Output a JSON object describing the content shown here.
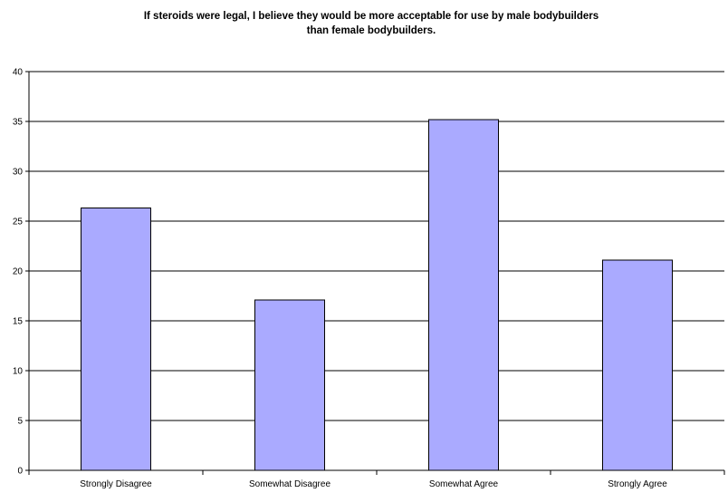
{
  "chart_data": {
    "type": "bar",
    "title_line1": "If steroids were legal, I believe they would be more acceptable for use by male bodybuilders",
    "title_line2": "than female bodybuilders.",
    "categories": [
      "Strongly Disagree",
      "Somewhat Disagree",
      "Somewhat Agree",
      "Strongly Agree"
    ],
    "values": [
      26.3,
      17.1,
      35.2,
      21.1
    ],
    "xlabel": "",
    "ylabel": "",
    "ylim": [
      0,
      40
    ],
    "yticks": [
      0,
      5,
      10,
      15,
      20,
      25,
      30,
      35,
      40
    ],
    "grid": true,
    "legend": "none",
    "bar_color": "#aaaaff",
    "bar_edge_color": "#000000"
  }
}
